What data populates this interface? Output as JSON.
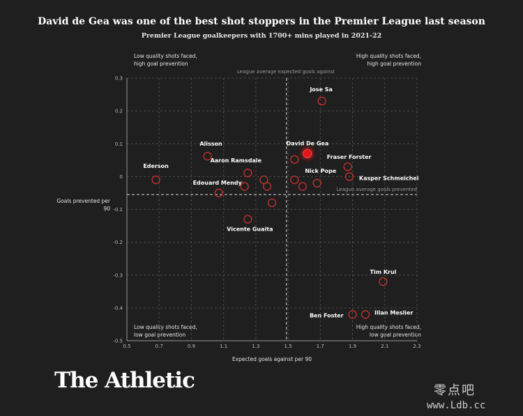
{
  "chart_data": {
    "type": "scatter",
    "title": "David de Gea was one of the best shot stoppers in the Premier League last season",
    "subtitle": "Premier League goalkeepers with 1700+ mins played in 2021-22",
    "xlabel": "Expected goals against per 90",
    "ylabel": "Goals prevented per 90",
    "xlim": [
      0.5,
      2.3
    ],
    "ylim": [
      -0.5,
      0.3
    ],
    "x_ticks": [
      "0.5",
      "0.7",
      "0.9",
      "1.1",
      "1.3",
      "1.5",
      "1.7",
      "1.9",
      "2.1",
      "2.3"
    ],
    "y_ticks": [
      "0.3",
      "0.2",
      "0.1",
      "0",
      "-0.1",
      "-0.2",
      "-0.3",
      "-0.4",
      "-0.5"
    ],
    "grid": true,
    "reference_lines": {
      "x": {
        "value": 1.49,
        "label": "League average expected goals against"
      },
      "y": {
        "value": -0.055,
        "label": "League average goals prevented"
      }
    },
    "quadrants": {
      "top_left": [
        "Low quality shots faced,",
        "high goal prevention"
      ],
      "top_right": [
        "High quality shots faced,",
        "high goal prevention"
      ],
      "bottom_left": [
        "Low quality shots faced,",
        "low goal prevention"
      ],
      "bottom_right": [
        "High quality shots faced,",
        "low goal prevention"
      ]
    },
    "points": [
      {
        "label": "Ederson",
        "x": 0.68,
        "y": -0.01
      },
      {
        "label": "Alisson",
        "x": 1.0,
        "y": 0.062
      },
      {
        "label": "Edouard Mendy",
        "x": 1.07,
        "y": -0.05
      },
      {
        "label": "Aaron Ramsdale",
        "x": 1.25,
        "y": 0.011
      },
      {
        "label": "",
        "x": 1.23,
        "y": -0.03
      },
      {
        "label": "",
        "x": 1.35,
        "y": -0.01
      },
      {
        "label": "",
        "x": 1.37,
        "y": -0.03
      },
      {
        "label": "",
        "x": 1.4,
        "y": -0.08
      },
      {
        "label": "Vicente Guaita",
        "x": 1.25,
        "y": -0.13
      },
      {
        "label": "",
        "x": 1.54,
        "y": 0.052
      },
      {
        "label": "David De Gea",
        "x": 1.62,
        "y": 0.07,
        "highlight": true
      },
      {
        "label": "Jose Sa",
        "x": 1.71,
        "y": 0.23
      },
      {
        "label": "Nick Pope",
        "x": 1.54,
        "y": -0.01
      },
      {
        "label": "",
        "x": 1.59,
        "y": -0.03
      },
      {
        "label": "",
        "x": 1.68,
        "y": -0.02
      },
      {
        "label": "Fraser Forster",
        "x": 1.87,
        "y": 0.03
      },
      {
        "label": "Kasper Schmeichel",
        "x": 1.88,
        "y": 0.0
      },
      {
        "label": "Tim Krul",
        "x": 2.09,
        "y": -0.32
      },
      {
        "label": "Ben Foster",
        "x": 1.9,
        "y": -0.42
      },
      {
        "label": "Illan Meslier",
        "x": 1.98,
        "y": -0.42
      }
    ],
    "colors": {
      "point": "#c9312d",
      "highlight": "#e0161d",
      "background": "#1f1f1f"
    }
  },
  "brand": "The Athletic",
  "watermark": {
    "line1": "零点吧",
    "line2": "www.Ldb.cc"
  }
}
